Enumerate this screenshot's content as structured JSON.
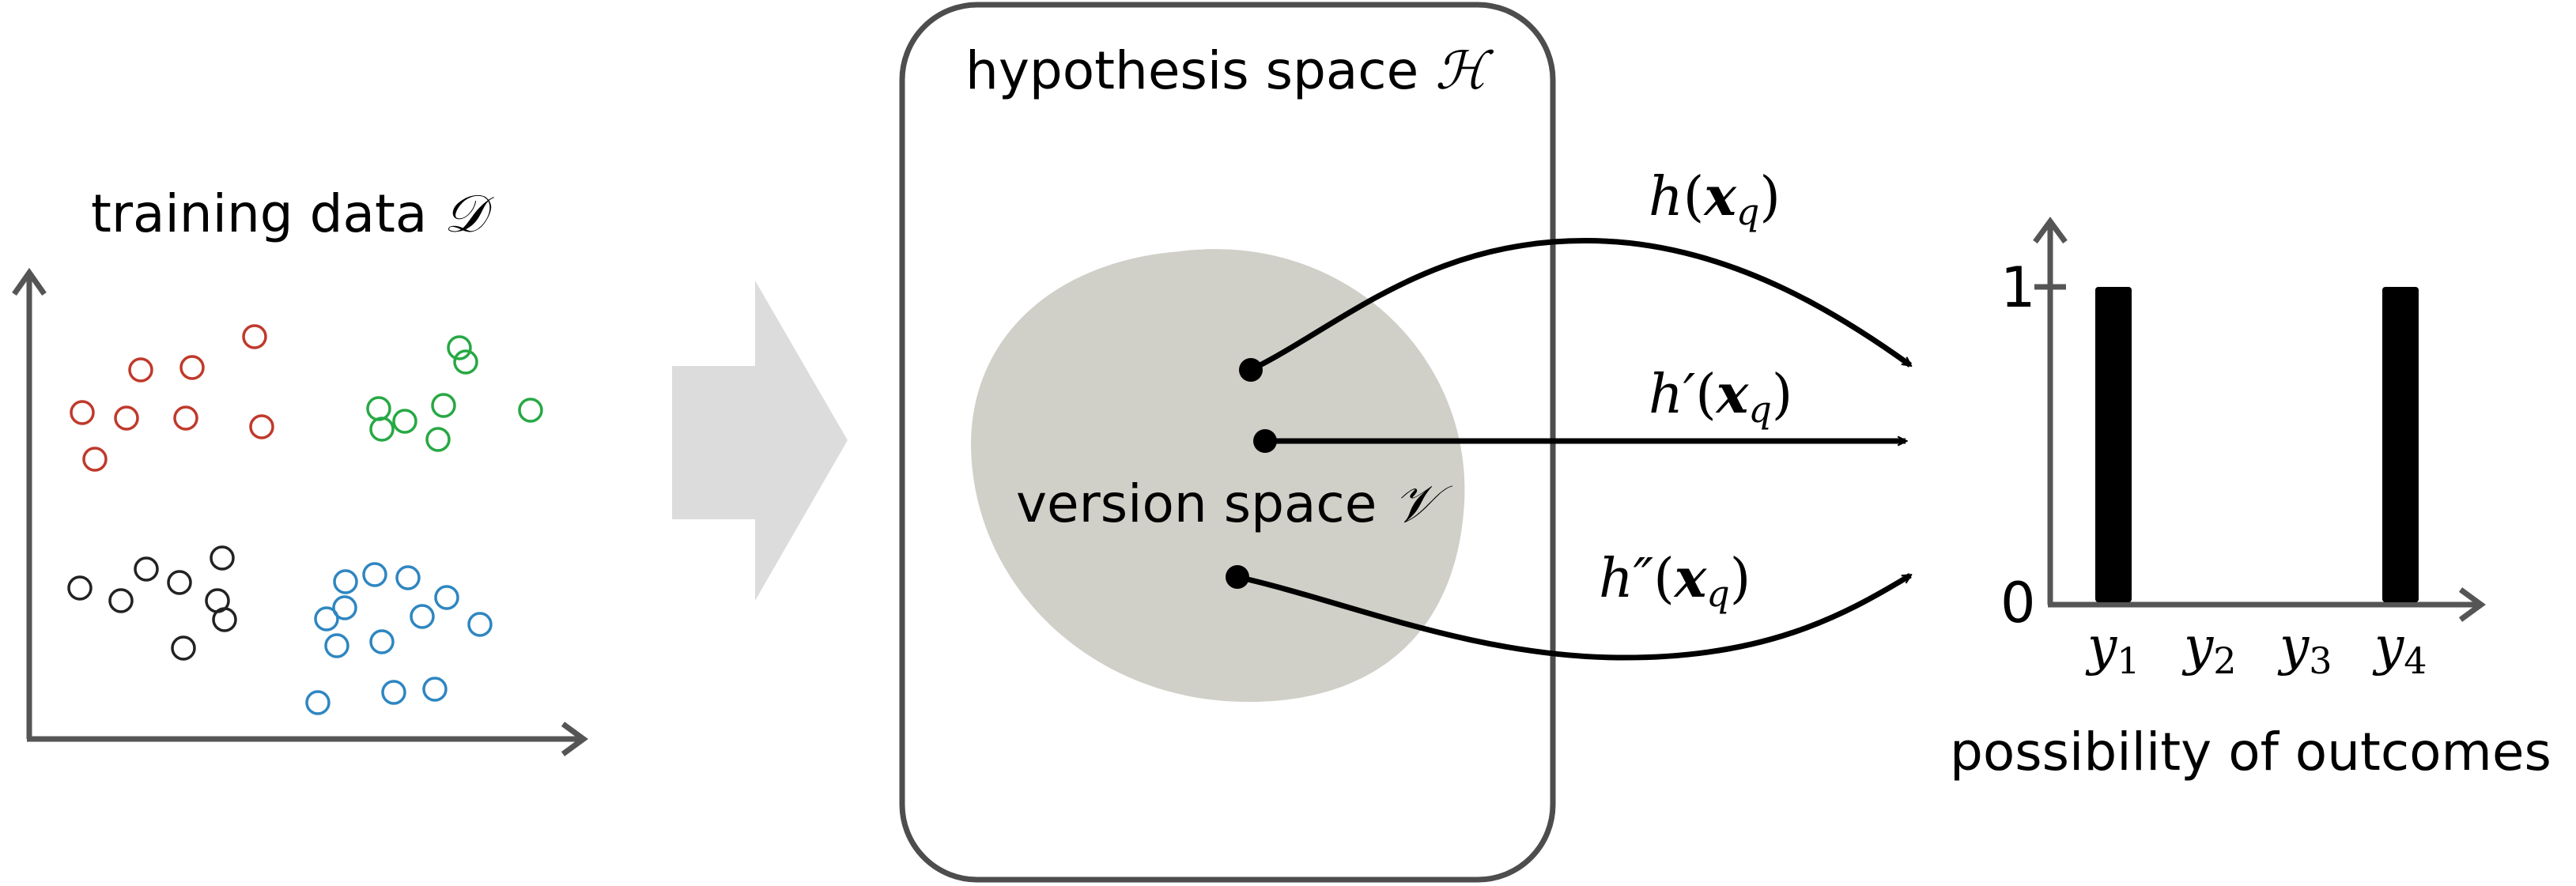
{
  "training": {
    "title": "training data ",
    "symbol": "𝒟",
    "clusters": [
      {
        "name": "red",
        "color": "#c0392b"
      },
      {
        "name": "green",
        "color": "#27a844"
      },
      {
        "name": "black",
        "color": "#222222"
      },
      {
        "name": "blue",
        "color": "#2e86c1"
      }
    ]
  },
  "hypothesis_space": {
    "title": "hypothesis space ",
    "symbol": "ℋ"
  },
  "version_space": {
    "title": "version space ",
    "symbol": "𝒱"
  },
  "hypotheses": [
    {
      "fn": "h",
      "prime": "",
      "arg": "x",
      "sub": "q"
    },
    {
      "fn": "h",
      "prime": "′",
      "arg": "x",
      "sub": "q"
    },
    {
      "fn": "h",
      "prime": "″",
      "arg": "x",
      "sub": "q"
    }
  ],
  "outcomes": {
    "title": "possibility of outcomes",
    "ytick_high": "1",
    "ytick_low": "0",
    "labels": [
      {
        "var": "y",
        "sub": "1"
      },
      {
        "var": "y",
        "sub": "2"
      },
      {
        "var": "y",
        "sub": "3"
      },
      {
        "var": "y",
        "sub": "4"
      }
    ],
    "values": [
      1,
      0,
      0,
      1
    ]
  },
  "colors": {
    "axis": "#555555",
    "arrow": "#000000",
    "big_arrow": "#dcdcdc",
    "version_space_fill": "#d0d0c9",
    "box_stroke": "#4d4d4d"
  }
}
